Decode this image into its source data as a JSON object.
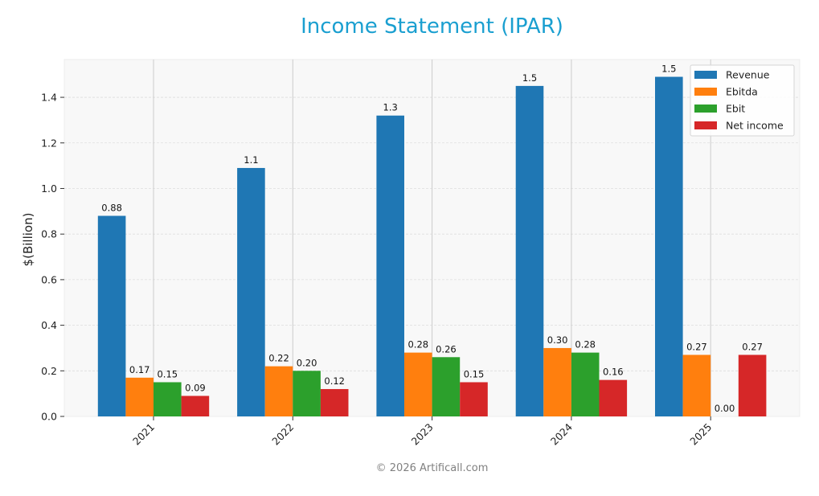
{
  "title": "Income Statement (IPAR)",
  "footer": "© 2026 Artificall.com",
  "colors": {
    "title": "#1a9fd0",
    "plot_background": "#f8f8f8",
    "grid": "#dddddd",
    "revenue": "#1f77b4",
    "ebitda": "#ff7f0e",
    "ebit": "#2ca02c",
    "net_income": "#d62728"
  },
  "chart_data": {
    "type": "bar",
    "title": "Income Statement (IPAR)",
    "xlabel": "",
    "ylabel": "$(Billion)",
    "categories": [
      "2021",
      "2022",
      "2023",
      "2024",
      "2025"
    ],
    "series": [
      {
        "name": "Revenue",
        "color": "#1f77b4",
        "values": [
          0.88,
          1.09,
          1.32,
          1.45,
          1.49
        ],
        "labels": [
          "0.88",
          "1.1",
          "1.3",
          "1.5",
          "1.5"
        ]
      },
      {
        "name": "Ebitda",
        "color": "#ff7f0e",
        "values": [
          0.17,
          0.22,
          0.28,
          0.3,
          0.27
        ],
        "labels": [
          "0.17",
          "0.22",
          "0.28",
          "0.30",
          "0.27"
        ]
      },
      {
        "name": "Ebit",
        "color": "#2ca02c",
        "values": [
          0.15,
          0.2,
          0.26,
          0.28,
          0.0
        ],
        "labels": [
          "0.15",
          "0.20",
          "0.26",
          "0.28",
          "0.00"
        ]
      },
      {
        "name": "Net income",
        "color": "#d62728",
        "values": [
          0.09,
          0.12,
          0.15,
          0.16,
          0.27
        ],
        "labels": [
          "0.09",
          "0.12",
          "0.15",
          "0.16",
          "0.27"
        ]
      }
    ],
    "yticks": [
      0.0,
      0.2,
      0.4,
      0.6,
      0.8,
      1.0,
      1.2,
      1.4
    ],
    "ytick_labels": [
      "0.0",
      "0.2",
      "0.4",
      "0.6",
      "0.8",
      "1.0",
      "1.2",
      "1.4"
    ],
    "ylim": [
      0,
      1.566
    ],
    "grid": true,
    "legend_position": "upper right",
    "xtick_rotation": 45
  }
}
